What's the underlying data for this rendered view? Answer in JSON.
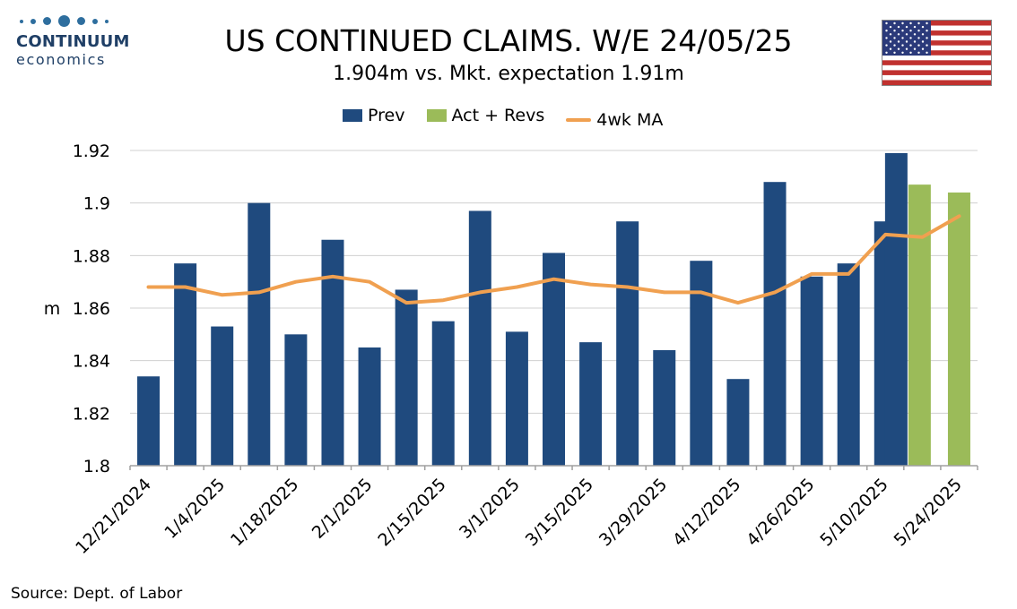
{
  "logo": {
    "brand": "CONTINUUM",
    "sub": "economics",
    "dot_color": "#2e6e9e"
  },
  "header": {
    "title": "US CONTINUED CLAIMS. W/E 24/05/25",
    "subtitle": "1.904m vs. Mkt. expectation 1.91m"
  },
  "flag": {
    "icon": "us-flag-icon"
  },
  "source": "Source: Dept. of Labor",
  "chart_data": {
    "type": "bar",
    "ylabel": "m",
    "ylim": [
      1.8,
      1.92
    ],
    "yticks": [
      "1.8",
      "1.82",
      "1.84",
      "1.86",
      "1.88",
      "1.9",
      "1.92"
    ],
    "ytick_values": [
      1.8,
      1.82,
      1.84,
      1.86,
      1.88,
      1.9,
      1.92
    ],
    "grid": true,
    "legend_position": "top",
    "categories": [
      "12/21/2024",
      "12/28/2024",
      "1/4/2025",
      "1/11/2025",
      "1/18/2025",
      "1/25/2025",
      "2/1/2025",
      "2/8/2025",
      "2/15/2025",
      "2/22/2025",
      "3/1/2025",
      "3/8/2025",
      "3/15/2025",
      "3/22/2025",
      "3/29/2025",
      "4/5/2025",
      "4/12/2025",
      "4/19/2025",
      "4/26/2025",
      "5/3/2025",
      "5/10/2025",
      "5/17/2025",
      "5/24/2025"
    ],
    "xtick_labels": [
      "12/21/2024",
      "",
      "1/4/2025",
      "",
      "1/18/2025",
      "",
      "2/1/2025",
      "",
      "2/15/2025",
      "",
      "3/1/2025",
      "",
      "3/15/2025",
      "",
      "3/29/2025",
      "",
      "4/12/2025",
      "",
      "4/26/2025",
      "",
      "5/10/2025",
      "",
      "5/24/2025"
    ],
    "series": [
      {
        "name": "Prev",
        "kind": "bar",
        "color": "#1f4a7e",
        "values": [
          1.834,
          1.877,
          1.853,
          1.9,
          1.85,
          1.886,
          1.845,
          1.867,
          1.855,
          1.897,
          1.851,
          1.881,
          1.847,
          1.893,
          1.844,
          1.878,
          1.833,
          1.908,
          1.872,
          1.877,
          1.893,
          1.919,
          null
        ]
      },
      {
        "name": "Act + Revs",
        "kind": "bar",
        "color": "#9bbb59",
        "values": [
          null,
          null,
          null,
          null,
          null,
          null,
          null,
          null,
          null,
          null,
          null,
          null,
          null,
          null,
          null,
          null,
          null,
          null,
          null,
          null,
          null,
          1.907,
          1.904
        ]
      },
      {
        "name": "4wk MA",
        "kind": "line",
        "color": "#f0a050",
        "values": [
          1.868,
          1.868,
          1.865,
          1.866,
          1.87,
          1.872,
          1.87,
          1.862,
          1.863,
          1.866,
          1.868,
          1.871,
          1.869,
          1.868,
          1.866,
          1.866,
          1.862,
          1.866,
          1.873,
          1.873,
          1.888,
          1.887,
          1.895
        ]
      }
    ]
  }
}
